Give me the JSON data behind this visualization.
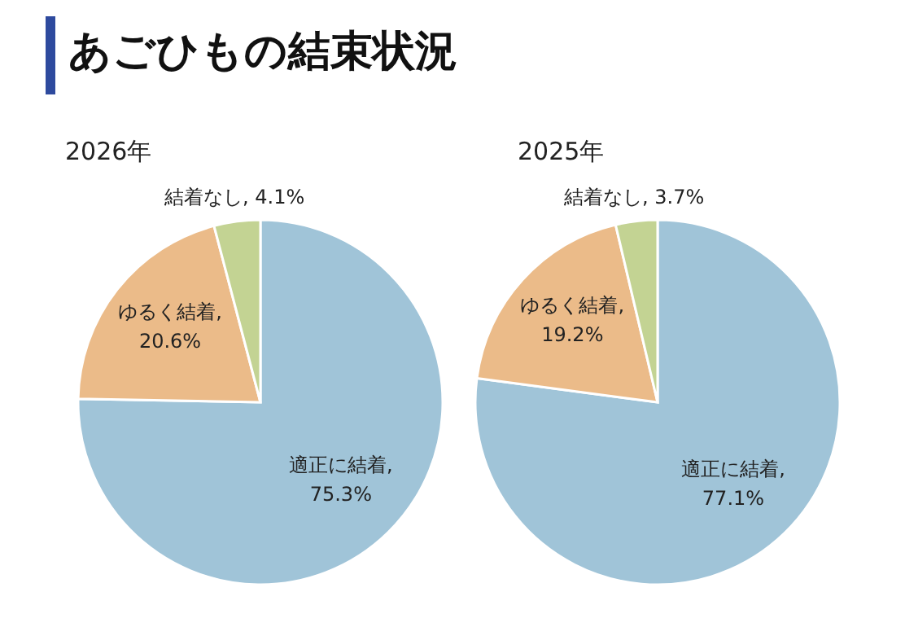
{
  "chart_data": [
    {
      "type": "other",
      "title": "あごひもの結束状況"
    },
    {
      "type": "pie",
      "title": "2026年",
      "categories": [
        "適正に結着",
        "ゆるく結着",
        "結着なし"
      ],
      "values": [
        75.3,
        20.6,
        4.1
      ],
      "value_labels": [
        ", 75.3%",
        ", 20.6%",
        ", 4.1%"
      ],
      "colors": [
        "#a0c4d8",
        "#ebbb89",
        "#c3d393"
      ]
    },
    {
      "type": "pie",
      "title": "2025年",
      "categories": [
        "適正に結着",
        "ゆるく結着",
        "結着なし"
      ],
      "values": [
        77.1,
        19.2,
        3.7
      ],
      "value_labels": [
        ", 77.1%",
        ", 19.2%",
        ", 3.7%"
      ],
      "colors": [
        "#a0c4d8",
        "#ebbb89",
        "#c3d393"
      ]
    }
  ]
}
